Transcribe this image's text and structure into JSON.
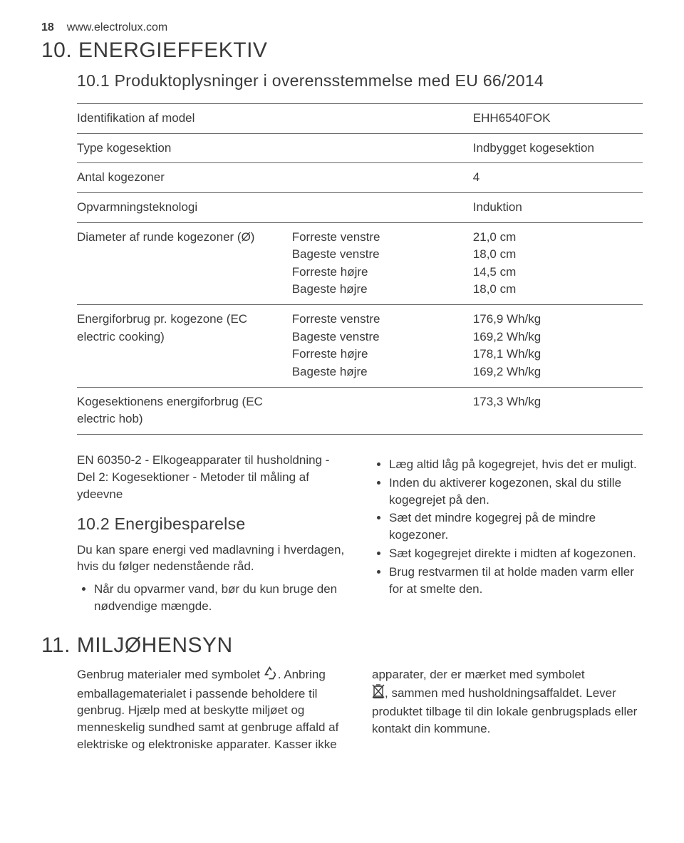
{
  "header": {
    "page_num": "18",
    "url": "www.electrolux.com"
  },
  "section10": {
    "title": "10. ENERGIEFFEKTIV",
    "sub1": "10.1 Produktoplysninger i overensstemmelse med EU 66/2014",
    "table": {
      "rows": [
        {
          "c1": "Identifikation af model",
          "c2": "",
          "c3": "EHH6540FOK"
        },
        {
          "c1": "Type kogesektion",
          "c2": "",
          "c3": "Indbygget kogesektion"
        },
        {
          "c1": "Antal kogezoner",
          "c2": "",
          "c3": "4"
        },
        {
          "c1": "Opvarmningsteknologi",
          "c2": "",
          "c3": "Induktion"
        },
        {
          "c1": "Diameter af runde kogezoner (Ø)",
          "c2": "Forreste venstre\nBageste venstre\nForreste højre\nBageste højre",
          "c3": "21,0 cm\n18,0 cm\n14,5 cm\n18,0 cm"
        },
        {
          "c1": "Energiforbrug pr. kogezone (EC electric cooking)",
          "c2": "Forreste venstre\nBageste venstre\nForreste højre\nBageste højre",
          "c3": "176,9 Wh/kg\n169,2 Wh/kg\n178,1 Wh/kg\n169,2 Wh/kg"
        },
        {
          "c1": "Kogesektionens energiforbrug (EC electric hob)",
          "c2": "",
          "c3": "173,3 Wh/kg"
        }
      ]
    },
    "leftcol": {
      "p1": "EN 60350-2 - Elkogeapparater til husholdning - Del 2: Kogesektioner - Metoder til måling af ydeevne",
      "sub2": "10.2 Energibesparelse",
      "p2": "Du kan spare energi ved madlavning i hverdagen, hvis du følger nedenstående råd.",
      "b1": "Når du opvarmer vand, bør du kun bruge den nødvendige mængde."
    },
    "rightcol": {
      "b1": "Læg altid låg på kogegrejet, hvis det er muligt.",
      "b2": "Inden du aktiverer kogezonen, skal du stille kogegrejet på den.",
      "b3": "Sæt det mindre kogegrej på de mindre kogezoner.",
      "b4": "Sæt kogegrejet direkte i midten af kogezonen.",
      "b5": "Brug restvarmen til at holde maden varm eller for at smelte den."
    }
  },
  "section11": {
    "title": "11. MILJØHENSYN",
    "left": {
      "p1a": "Genbrug materialer med symbolet ",
      "p1b": ". Anbring emballagematerialet i passende beholdere til genbrug. Hjælp med at beskytte miljøet og menneskelig sundhed samt at genbruge affald af elektriske og elektroniske apparater. Kasser ikke"
    },
    "right": {
      "p1a": "apparater, der er mærket med symbolet ",
      "p1b": ", sammen med husholdningsaffaldet. Lever produktet tilbage til din lokale genbrugsplads eller kontakt din kommune."
    }
  }
}
